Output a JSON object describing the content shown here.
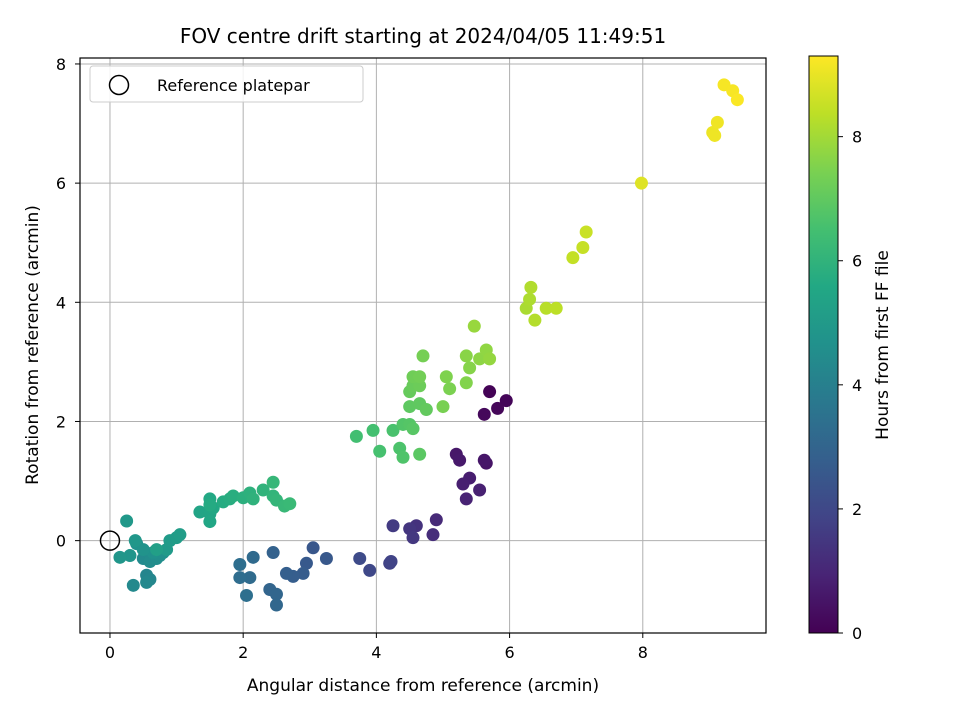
{
  "chart_data": {
    "type": "scatter",
    "title": "FOV centre drift starting at 2024/04/05 11:49:51",
    "xlabel": "Angular distance from reference (arcmin)",
    "ylabel": "Rotation from reference (arcmin)",
    "xlim": [
      -0.45,
      9.85
    ],
    "ylim": [
      -1.55,
      8.1
    ],
    "xticks": [
      "0",
      "2",
      "4",
      "6",
      "8"
    ],
    "yticks": [
      "0",
      "2",
      "4",
      "6",
      "8"
    ],
    "grid": true,
    "legend": {
      "position": "top-left",
      "entries": [
        "Reference platepar"
      ]
    },
    "reference_point": {
      "x": 0,
      "y": 0
    },
    "colorbar": {
      "label": "Hours from first FF file",
      "range": [
        0,
        9.3
      ],
      "ticks": [
        "0",
        "2",
        "4",
        "6",
        "8"
      ],
      "colormap": "viridis"
    },
    "points": [
      {
        "x": 5.7,
        "y": 2.5,
        "c": 0.05
      },
      {
        "x": 5.95,
        "y": 2.35,
        "c": 0.1
      },
      {
        "x": 5.82,
        "y": 2.22,
        "c": 0.15
      },
      {
        "x": 5.62,
        "y": 2.12,
        "c": 0.2
      },
      {
        "x": 5.65,
        "y": 1.3,
        "c": 0.5
      },
      {
        "x": 5.62,
        "y": 1.35,
        "c": 0.55
      },
      {
        "x": 5.2,
        "y": 1.45,
        "c": 0.6
      },
      {
        "x": 5.25,
        "y": 1.35,
        "c": 0.65
      },
      {
        "x": 5.4,
        "y": 1.05,
        "c": 0.75
      },
      {
        "x": 5.3,
        "y": 0.95,
        "c": 0.8
      },
      {
        "x": 5.55,
        "y": 0.85,
        "c": 0.85
      },
      {
        "x": 5.35,
        "y": 0.7,
        "c": 0.9
      },
      {
        "x": 4.9,
        "y": 0.35,
        "c": 1.1
      },
      {
        "x": 4.85,
        "y": 0.1,
        "c": 1.2
      },
      {
        "x": 4.6,
        "y": 0.25,
        "c": 1.35
      },
      {
        "x": 4.5,
        "y": 0.2,
        "c": 1.45
      },
      {
        "x": 4.55,
        "y": 0.05,
        "c": 1.5
      },
      {
        "x": 4.25,
        "y": 0.25,
        "c": 1.6
      },
      {
        "x": 4.2,
        "y": -0.38,
        "c": 1.8
      },
      {
        "x": 4.22,
        "y": -0.35,
        "c": 1.85
      },
      {
        "x": 3.9,
        "y": -0.5,
        "c": 2.0
      },
      {
        "x": 3.75,
        "y": -0.3,
        "c": 2.1
      },
      {
        "x": 3.05,
        "y": -0.12,
        "c": 2.5
      },
      {
        "x": 3.25,
        "y": -0.3,
        "c": 2.55
      },
      {
        "x": 2.95,
        "y": -0.38,
        "c": 2.6
      },
      {
        "x": 2.9,
        "y": -0.55,
        "c": 2.7
      },
      {
        "x": 2.75,
        "y": -0.6,
        "c": 2.75
      },
      {
        "x": 2.65,
        "y": -0.55,
        "c": 2.8
      },
      {
        "x": 2.45,
        "y": -0.2,
        "c": 2.9
      },
      {
        "x": 2.4,
        "y": -0.82,
        "c": 3.0
      },
      {
        "x": 2.5,
        "y": -0.9,
        "c": 3.05
      },
      {
        "x": 2.5,
        "y": -1.08,
        "c": 3.1
      },
      {
        "x": 2.15,
        "y": -0.28,
        "c": 3.2
      },
      {
        "x": 2.1,
        "y": -0.62,
        "c": 3.25
      },
      {
        "x": 1.95,
        "y": -0.62,
        "c": 3.3
      },
      {
        "x": 1.95,
        "y": -0.4,
        "c": 3.35
      },
      {
        "x": 2.05,
        "y": -0.92,
        "c": 3.4
      },
      {
        "x": 0.55,
        "y": -0.58,
        "c": 4.2
      },
      {
        "x": 0.6,
        "y": -0.65,
        "c": 4.25
      },
      {
        "x": 0.55,
        "y": -0.7,
        "c": 4.3
      },
      {
        "x": 0.35,
        "y": -0.75,
        "c": 4.35
      },
      {
        "x": 0.5,
        "y": -0.3,
        "c": 4.4
      },
      {
        "x": 0.6,
        "y": -0.35,
        "c": 4.45
      },
      {
        "x": 0.7,
        "y": -0.3,
        "c": 4.5
      },
      {
        "x": 0.75,
        "y": -0.25,
        "c": 4.55
      },
      {
        "x": 0.8,
        "y": -0.2,
        "c": 4.6
      },
      {
        "x": 0.65,
        "y": -0.2,
        "c": 4.65
      },
      {
        "x": 0.4,
        "y": -0.05,
        "c": 4.7
      },
      {
        "x": 0.5,
        "y": -0.15,
        "c": 4.75
      },
      {
        "x": 0.3,
        "y": -0.25,
        "c": 4.8
      },
      {
        "x": 0.15,
        "y": -0.28,
        "c": 4.85
      },
      {
        "x": 0.38,
        "y": 0.0,
        "c": 4.9
      },
      {
        "x": 0.25,
        "y": 0.33,
        "c": 4.95
      },
      {
        "x": 0.85,
        "y": -0.15,
        "c": 5.0
      },
      {
        "x": 0.9,
        "y": 0.0,
        "c": 5.05
      },
      {
        "x": 1.0,
        "y": 0.05,
        "c": 5.1
      },
      {
        "x": 1.05,
        "y": 0.1,
        "c": 5.15
      },
      {
        "x": 0.7,
        "y": -0.15,
        "c": 5.2
      },
      {
        "x": 1.35,
        "y": 0.48,
        "c": 5.4
      },
      {
        "x": 1.5,
        "y": 0.45,
        "c": 5.45
      },
      {
        "x": 1.5,
        "y": 0.32,
        "c": 5.5
      },
      {
        "x": 1.55,
        "y": 0.55,
        "c": 5.55
      },
      {
        "x": 1.5,
        "y": 0.7,
        "c": 5.6
      },
      {
        "x": 1.5,
        "y": 0.6,
        "c": 5.65
      },
      {
        "x": 1.7,
        "y": 0.65,
        "c": 5.7
      },
      {
        "x": 1.8,
        "y": 0.7,
        "c": 5.75
      },
      {
        "x": 1.85,
        "y": 0.75,
        "c": 5.8
      },
      {
        "x": 2.0,
        "y": 0.72,
        "c": 5.85
      },
      {
        "x": 2.1,
        "y": 0.8,
        "c": 5.9
      },
      {
        "x": 2.15,
        "y": 0.7,
        "c": 5.95
      },
      {
        "x": 2.3,
        "y": 0.85,
        "c": 6.0
      },
      {
        "x": 2.45,
        "y": 0.75,
        "c": 6.05
      },
      {
        "x": 2.5,
        "y": 0.68,
        "c": 6.1
      },
      {
        "x": 2.45,
        "y": 0.98,
        "c": 6.15
      },
      {
        "x": 2.62,
        "y": 0.58,
        "c": 6.2
      },
      {
        "x": 2.7,
        "y": 0.62,
        "c": 6.25
      },
      {
        "x": 3.7,
        "y": 1.75,
        "c": 6.45
      },
      {
        "x": 3.95,
        "y": 1.85,
        "c": 6.5
      },
      {
        "x": 4.05,
        "y": 1.5,
        "c": 6.55
      },
      {
        "x": 4.25,
        "y": 1.85,
        "c": 6.6
      },
      {
        "x": 4.35,
        "y": 1.55,
        "c": 6.65
      },
      {
        "x": 4.4,
        "y": 1.4,
        "c": 6.7
      },
      {
        "x": 4.4,
        "y": 1.95,
        "c": 6.75
      },
      {
        "x": 4.5,
        "y": 1.95,
        "c": 6.8
      },
      {
        "x": 4.55,
        "y": 1.88,
        "c": 6.85
      },
      {
        "x": 4.65,
        "y": 1.45,
        "c": 6.9
      },
      {
        "x": 4.5,
        "y": 2.25,
        "c": 6.95
      },
      {
        "x": 4.65,
        "y": 2.3,
        "c": 7.0
      },
      {
        "x": 4.75,
        "y": 2.2,
        "c": 7.05
      },
      {
        "x": 4.5,
        "y": 2.5,
        "c": 7.1
      },
      {
        "x": 4.55,
        "y": 2.6,
        "c": 7.15
      },
      {
        "x": 4.65,
        "y": 2.6,
        "c": 7.2
      },
      {
        "x": 4.55,
        "y": 2.75,
        "c": 7.25
      },
      {
        "x": 4.65,
        "y": 2.75,
        "c": 7.3
      },
      {
        "x": 4.7,
        "y": 3.1,
        "c": 7.35
      },
      {
        "x": 5.0,
        "y": 2.25,
        "c": 7.4
      },
      {
        "x": 5.1,
        "y": 2.55,
        "c": 7.45
      },
      {
        "x": 5.05,
        "y": 2.75,
        "c": 7.5
      },
      {
        "x": 5.35,
        "y": 2.65,
        "c": 7.55
      },
      {
        "x": 5.4,
        "y": 2.9,
        "c": 7.6
      },
      {
        "x": 5.35,
        "y": 3.1,
        "c": 7.65
      },
      {
        "x": 5.55,
        "y": 3.05,
        "c": 7.7
      },
      {
        "x": 5.65,
        "y": 3.2,
        "c": 7.75
      },
      {
        "x": 5.7,
        "y": 3.05,
        "c": 7.8
      },
      {
        "x": 5.47,
        "y": 3.6,
        "c": 7.85
      },
      {
        "x": 6.25,
        "y": 3.9,
        "c": 8.1
      },
      {
        "x": 6.3,
        "y": 4.05,
        "c": 8.15
      },
      {
        "x": 6.32,
        "y": 4.25,
        "c": 8.2
      },
      {
        "x": 6.38,
        "y": 3.7,
        "c": 8.25
      },
      {
        "x": 6.55,
        "y": 3.9,
        "c": 8.3
      },
      {
        "x": 6.7,
        "y": 3.9,
        "c": 8.35
      },
      {
        "x": 6.95,
        "y": 4.75,
        "c": 8.45
      },
      {
        "x": 7.1,
        "y": 4.92,
        "c": 8.5
      },
      {
        "x": 7.15,
        "y": 5.18,
        "c": 8.55
      },
      {
        "x": 7.98,
        "y": 6.0,
        "c": 8.85
      },
      {
        "x": 9.05,
        "y": 6.85,
        "c": 9.05
      },
      {
        "x": 9.08,
        "y": 6.8,
        "c": 9.08
      },
      {
        "x": 9.12,
        "y": 7.02,
        "c": 9.1
      },
      {
        "x": 9.22,
        "y": 7.65,
        "c": 9.2
      },
      {
        "x": 9.35,
        "y": 7.55,
        "c": 9.22
      },
      {
        "x": 9.42,
        "y": 7.4,
        "c": 9.25
      }
    ]
  }
}
